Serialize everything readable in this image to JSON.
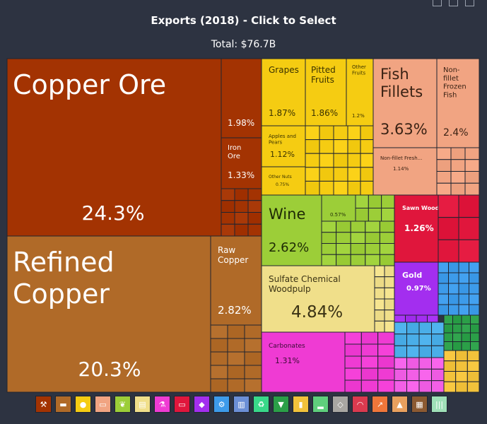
{
  "header": {
    "title": "Exports (2018) - Click to Select",
    "total": "Total: $76.7B"
  },
  "toolbar": {
    "icons": [
      "table-icon",
      "minimize-icon",
      "trash-icon"
    ]
  },
  "colors": {
    "mining": "#a33302",
    "metals": "#b06a28",
    "vegetable": "#f5cc12",
    "animal": "#f1a482",
    "foodstuffs": "#9cce38",
    "paper": "#f0df8a",
    "chemicals": "#ef3bd3",
    "plastics": "#e0163c",
    "precious": "#a32eef",
    "machines": "#3d9bea",
    "textiles": "#2b9f48",
    "misc": "#f2c23b"
  },
  "chart_data": {
    "type": "treemap",
    "title": "Exports (2018) - Click to Select",
    "subtitle": "Total: $76.7B",
    "unit": "%",
    "items": [
      {
        "name": "Copper Ore",
        "value": 24.3,
        "share": "24.3%",
        "sector": "mining"
      },
      {
        "name": "",
        "value": 1.98,
        "share": "1.98%",
        "sector": "mining"
      },
      {
        "name": "Iron Ore",
        "value": 1.33,
        "share": "1.33%",
        "sector": "mining"
      },
      {
        "name": "Refined Copper",
        "value": 20.3,
        "share": "20.3%",
        "sector": "metals"
      },
      {
        "name": "Raw Copper",
        "value": 2.82,
        "share": "2.82%",
        "sector": "metals"
      },
      {
        "name": "Grapes",
        "value": 1.87,
        "share": "1.87%",
        "sector": "vegetable"
      },
      {
        "name": "Pitted Fruits",
        "value": 1.86,
        "share": "1.86%",
        "sector": "vegetable"
      },
      {
        "name": "Other Fruits",
        "value": 1.2,
        "share": "1.2%",
        "sector": "vegetable"
      },
      {
        "name": "Apples and Pears",
        "value": 1.12,
        "share": "1.12%",
        "sector": "vegetable"
      },
      {
        "name": "Other Nuts",
        "value": 0.75,
        "share": "0.75%",
        "sector": "vegetable"
      },
      {
        "name": "Fish Fillets",
        "value": 3.63,
        "share": "3.63%",
        "sector": "animal"
      },
      {
        "name": "Non-fillet Frozen Fish",
        "value": 2.4,
        "share": "2.4%",
        "sector": "animal"
      },
      {
        "name": "Non-fillet Fresh...",
        "value": 1.14,
        "share": "1.14%",
        "sector": "animal"
      },
      {
        "name": "Wine",
        "value": 2.62,
        "share": "2.62%",
        "sector": "foodstuffs"
      },
      {
        "name": "",
        "value": 0.57,
        "share": "0.57%",
        "sector": "foodstuffs"
      },
      {
        "name": "Sulfate Chemical Woodpulp",
        "value": 4.84,
        "share": "4.84%",
        "sector": "paper"
      },
      {
        "name": "Carbonates",
        "value": 1.31,
        "share": "1.31%",
        "sector": "chemicals"
      },
      {
        "name": "Sawn Wood",
        "value": 1.26,
        "share": "1.26%",
        "sector": "plastics"
      },
      {
        "name": "Gold",
        "value": 0.97,
        "share": "0.97%",
        "sector": "precious"
      }
    ],
    "legend": [
      {
        "icon": "pickaxe-icon",
        "sector": "mining",
        "glyph": "⚒"
      },
      {
        "icon": "anvil-icon",
        "sector": "metals",
        "glyph": "▬"
      },
      {
        "icon": "fruit-icon",
        "sector": "vegetable",
        "glyph": "●"
      },
      {
        "icon": "animal-icon",
        "sector": "animal",
        "glyph": "▭"
      },
      {
        "icon": "wheat-icon",
        "sector": "foodstuffs",
        "glyph": "❦"
      },
      {
        "icon": "paper-icon",
        "sector": "paper",
        "glyph": "▤"
      },
      {
        "icon": "flask-icon",
        "sector": "chemicals",
        "glyph": "⚗"
      },
      {
        "icon": "tag-icon",
        "sector": "plastics",
        "glyph": "▭"
      },
      {
        "icon": "gem-icon",
        "sector": "precious",
        "glyph": "◆"
      },
      {
        "icon": "gear-icon",
        "sector": "machines",
        "glyph": "⚙"
      },
      {
        "icon": "road-icon",
        "sector": "transport",
        "glyph": "▥"
      },
      {
        "icon": "recycle-icon",
        "sector": "recycle",
        "glyph": "♻"
      },
      {
        "icon": "shirt-icon",
        "sector": "textiles",
        "glyph": "▼"
      },
      {
        "icon": "can-icon",
        "sector": "misc",
        "glyph": "▮"
      },
      {
        "icon": "shoe-icon",
        "sector": "footwear",
        "glyph": "▂"
      },
      {
        "icon": "box-icon",
        "sector": "stone",
        "glyph": "◇"
      },
      {
        "icon": "gauge-icon",
        "sector": "instruments",
        "glyph": "◠"
      },
      {
        "icon": "weapon-icon",
        "sector": "weapons",
        "glyph": "↗"
      },
      {
        "icon": "hide-icon",
        "sector": "hides",
        "glyph": "▲"
      },
      {
        "icon": "art-icon",
        "sector": "art",
        "glyph": "▦"
      },
      {
        "icon": "lines-icon",
        "sector": "other",
        "glyph": "|||"
      }
    ],
    "legend_colors": {
      "mining": "#a33302",
      "metals": "#b06a28",
      "vegetable": "#f5cc12",
      "animal": "#f1a482",
      "foodstuffs": "#9cce38",
      "paper": "#f0df8a",
      "chemicals": "#ef3bd3",
      "plastics": "#e0163c",
      "precious": "#a32eef",
      "machines": "#3d9bea",
      "transport": "#6b8fd6",
      "recycle": "#39d889",
      "textiles": "#2b9f48",
      "misc": "#f2c23b",
      "footwear": "#5fcf7c",
      "stone": "#a8a6a2",
      "instruments": "#db3a4f",
      "weapons": "#f0763a",
      "hides": "#e8a05e",
      "art": "#8c5a32",
      "other": "#9fe0b8"
    }
  }
}
